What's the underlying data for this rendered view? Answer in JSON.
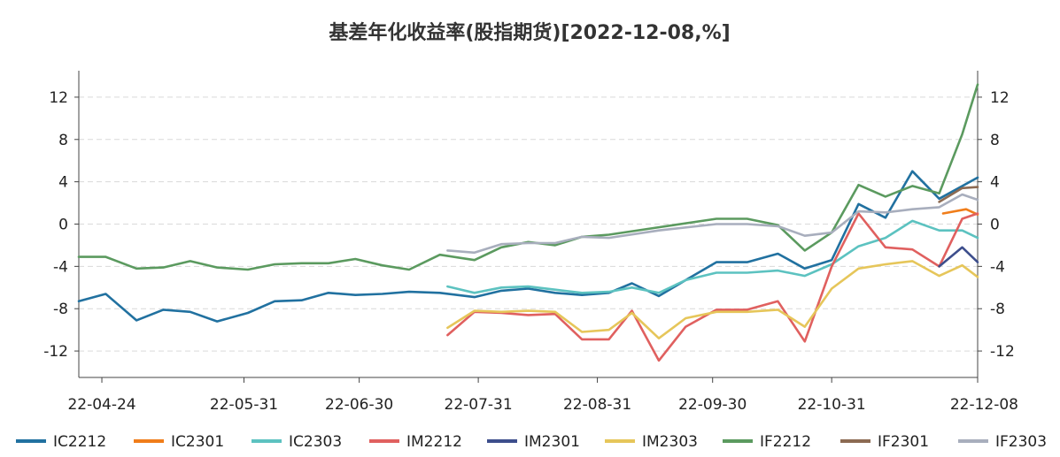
{
  "chart_data": {
    "type": "line",
    "title": "基差年化收益率(股指期货)[2022-12-08,%]",
    "xlabel": "",
    "ylabel": "",
    "ylim": [
      -14.5,
      14.5
    ],
    "yticks": [
      -12,
      -8,
      -4,
      0,
      4,
      8,
      12
    ],
    "ytick_labels": [
      "-12",
      "-8",
      "-4",
      "0",
      "4",
      "8",
      "12"
    ],
    "grid": "horizontal-dashed",
    "legend_position": "bottom",
    "xlim": [
      "2022-04-18",
      "2022-12-08"
    ],
    "xticks": [
      "2022-04-24",
      "2022-05-31",
      "2022-06-30",
      "2022-07-31",
      "2022-08-31",
      "2022-09-30",
      "2022-10-31",
      "2022-12-08"
    ],
    "xtick_labels": [
      "22-04-24",
      "22-05-31",
      "22-06-30",
      "22-07-31",
      "22-08-31",
      "22-09-30",
      "22-10-31",
      "22-12-08"
    ],
    "series": [
      {
        "name": "IC2212",
        "color": "#2171a0",
        "points": [
          [
            "2022-04-18",
            -7.3
          ],
          [
            "2022-04-25",
            -6.6
          ],
          [
            "2022-05-03",
            -9.1
          ],
          [
            "2022-05-10",
            -8.1
          ],
          [
            "2022-05-17",
            -8.3
          ],
          [
            "2022-05-24",
            -9.2
          ],
          [
            "2022-06-01",
            -8.4
          ],
          [
            "2022-06-08",
            -7.3
          ],
          [
            "2022-06-15",
            -7.2
          ],
          [
            "2022-06-22",
            -6.5
          ],
          [
            "2022-06-29",
            -6.7
          ],
          [
            "2022-07-06",
            -6.6
          ],
          [
            "2022-07-13",
            -6.4
          ],
          [
            "2022-07-21",
            -6.5
          ],
          [
            "2022-07-30",
            -6.9
          ],
          [
            "2022-08-06",
            -6.3
          ],
          [
            "2022-08-13",
            -6.1
          ],
          [
            "2022-08-20",
            -6.5
          ],
          [
            "2022-08-27",
            -6.7
          ],
          [
            "2022-09-03",
            -6.5
          ],
          [
            "2022-09-09",
            -5.6
          ],
          [
            "2022-09-16",
            -6.8
          ],
          [
            "2022-09-23",
            -5.3
          ],
          [
            "2022-10-01",
            -3.6
          ],
          [
            "2022-10-09",
            -3.6
          ],
          [
            "2022-10-17",
            -2.8
          ],
          [
            "2022-10-24",
            -4.2
          ],
          [
            "2022-10-31",
            -3.4
          ],
          [
            "2022-11-07",
            1.9
          ],
          [
            "2022-11-14",
            0.6
          ],
          [
            "2022-11-21",
            5.0
          ],
          [
            "2022-11-28",
            2.4
          ],
          [
            "2022-12-08",
            4.4
          ]
        ]
      },
      {
        "name": "IC2301",
        "color": "#f07d1a",
        "points": [
          [
            "2022-11-29",
            1.0
          ],
          [
            "2022-12-05",
            1.4
          ],
          [
            "2022-12-08",
            0.9
          ]
        ]
      },
      {
        "name": "IC2303",
        "color": "#5cc2c0",
        "points": [
          [
            "2022-07-23",
            -5.9
          ],
          [
            "2022-07-30",
            -6.5
          ],
          [
            "2022-08-06",
            -6.0
          ],
          [
            "2022-08-13",
            -5.9
          ],
          [
            "2022-08-20",
            -6.2
          ],
          [
            "2022-08-27",
            -6.5
          ],
          [
            "2022-09-03",
            -6.4
          ],
          [
            "2022-09-09",
            -6.0
          ],
          [
            "2022-09-16",
            -6.5
          ],
          [
            "2022-09-23",
            -5.3
          ],
          [
            "2022-10-01",
            -4.6
          ],
          [
            "2022-10-09",
            -4.6
          ],
          [
            "2022-10-17",
            -4.4
          ],
          [
            "2022-10-24",
            -4.9
          ],
          [
            "2022-10-31",
            -3.8
          ],
          [
            "2022-11-07",
            -2.1
          ],
          [
            "2022-11-14",
            -1.3
          ],
          [
            "2022-11-21",
            0.3
          ],
          [
            "2022-11-28",
            -0.6
          ],
          [
            "2022-12-04",
            -0.6
          ],
          [
            "2022-12-08",
            -1.3
          ]
        ]
      },
      {
        "name": "IM2212",
        "color": "#e0605f",
        "points": [
          [
            "2022-07-23",
            -10.5
          ],
          [
            "2022-07-30",
            -8.3
          ],
          [
            "2022-08-06",
            -8.4
          ],
          [
            "2022-08-13",
            -8.6
          ],
          [
            "2022-08-20",
            -8.5
          ],
          [
            "2022-08-27",
            -10.9
          ],
          [
            "2022-09-03",
            -10.9
          ],
          [
            "2022-09-09",
            -8.2
          ],
          [
            "2022-09-16",
            -12.9
          ],
          [
            "2022-09-23",
            -9.7
          ],
          [
            "2022-10-01",
            -8.1
          ],
          [
            "2022-10-09",
            -8.1
          ],
          [
            "2022-10-17",
            -7.3
          ],
          [
            "2022-10-24",
            -11.1
          ],
          [
            "2022-10-31",
            -4.0
          ],
          [
            "2022-11-07",
            1.0
          ],
          [
            "2022-11-14",
            -2.2
          ],
          [
            "2022-11-21",
            -2.4
          ],
          [
            "2022-11-28",
            -4.0
          ],
          [
            "2022-12-04",
            0.5
          ],
          [
            "2022-12-08",
            1.0
          ]
        ]
      },
      {
        "name": "IM2301",
        "color": "#3d4e8c",
        "points": [
          [
            "2022-11-28",
            -4.0
          ],
          [
            "2022-12-04",
            -2.2
          ],
          [
            "2022-12-08",
            -3.6
          ]
        ]
      },
      {
        "name": "IM2303",
        "color": "#e6c65a",
        "points": [
          [
            "2022-07-23",
            -9.8
          ],
          [
            "2022-07-30",
            -8.2
          ],
          [
            "2022-08-06",
            -8.3
          ],
          [
            "2022-08-13",
            -8.2
          ],
          [
            "2022-08-20",
            -8.3
          ],
          [
            "2022-08-27",
            -10.2
          ],
          [
            "2022-09-03",
            -10.0
          ],
          [
            "2022-09-09",
            -8.4
          ],
          [
            "2022-09-16",
            -10.8
          ],
          [
            "2022-09-23",
            -8.9
          ],
          [
            "2022-10-01",
            -8.3
          ],
          [
            "2022-10-09",
            -8.3
          ],
          [
            "2022-10-17",
            -8.1
          ],
          [
            "2022-10-24",
            -9.7
          ],
          [
            "2022-10-31",
            -6.1
          ],
          [
            "2022-11-07",
            -4.2
          ],
          [
            "2022-11-14",
            -3.8
          ],
          [
            "2022-11-21",
            -3.5
          ],
          [
            "2022-11-28",
            -4.9
          ],
          [
            "2022-12-04",
            -3.9
          ],
          [
            "2022-12-08",
            -5.0
          ]
        ]
      },
      {
        "name": "IF2212",
        "color": "#5b9a5f",
        "points": [
          [
            "2022-04-18",
            -3.1
          ],
          [
            "2022-04-25",
            -3.1
          ],
          [
            "2022-05-03",
            -4.2
          ],
          [
            "2022-05-10",
            -4.1
          ],
          [
            "2022-05-17",
            -3.5
          ],
          [
            "2022-05-24",
            -4.1
          ],
          [
            "2022-06-01",
            -4.3
          ],
          [
            "2022-06-08",
            -3.8
          ],
          [
            "2022-06-15",
            -3.7
          ],
          [
            "2022-06-22",
            -3.7
          ],
          [
            "2022-06-29",
            -3.3
          ],
          [
            "2022-07-06",
            -3.9
          ],
          [
            "2022-07-13",
            -4.3
          ],
          [
            "2022-07-21",
            -2.9
          ],
          [
            "2022-07-30",
            -3.4
          ],
          [
            "2022-08-06",
            -2.2
          ],
          [
            "2022-08-13",
            -1.7
          ],
          [
            "2022-08-20",
            -2.0
          ],
          [
            "2022-08-27",
            -1.2
          ],
          [
            "2022-09-03",
            -1.0
          ],
          [
            "2022-09-16",
            -0.3
          ],
          [
            "2022-10-01",
            0.5
          ],
          [
            "2022-10-09",
            0.5
          ],
          [
            "2022-10-17",
            -0.1
          ],
          [
            "2022-10-24",
            -2.5
          ],
          [
            "2022-10-31",
            -0.8
          ],
          [
            "2022-11-07",
            3.7
          ],
          [
            "2022-11-14",
            2.6
          ],
          [
            "2022-11-21",
            3.6
          ],
          [
            "2022-11-28",
            2.9
          ],
          [
            "2022-12-04",
            8.5
          ],
          [
            "2022-12-08",
            13.2
          ]
        ]
      },
      {
        "name": "IF2301",
        "color": "#8c6a52",
        "points": [
          [
            "2022-11-28",
            2.1
          ],
          [
            "2022-12-04",
            3.4
          ],
          [
            "2022-12-08",
            3.5
          ]
        ]
      },
      {
        "name": "IF2303",
        "color": "#a8aebd",
        "points": [
          [
            "2022-07-23",
            -2.5
          ],
          [
            "2022-07-30",
            -2.7
          ],
          [
            "2022-08-06",
            -1.9
          ],
          [
            "2022-08-13",
            -1.8
          ],
          [
            "2022-08-20",
            -1.8
          ],
          [
            "2022-08-27",
            -1.2
          ],
          [
            "2022-09-03",
            -1.3
          ],
          [
            "2022-09-16",
            -0.6
          ],
          [
            "2022-10-01",
            0.0
          ],
          [
            "2022-10-09",
            0.0
          ],
          [
            "2022-10-17",
            -0.2
          ],
          [
            "2022-10-24",
            -1.1
          ],
          [
            "2022-10-31",
            -0.8
          ],
          [
            "2022-11-07",
            1.2
          ],
          [
            "2022-11-14",
            1.1
          ],
          [
            "2022-11-21",
            1.4
          ],
          [
            "2022-11-28",
            1.6
          ],
          [
            "2022-12-04",
            2.8
          ],
          [
            "2022-12-08",
            2.3
          ]
        ]
      }
    ]
  }
}
